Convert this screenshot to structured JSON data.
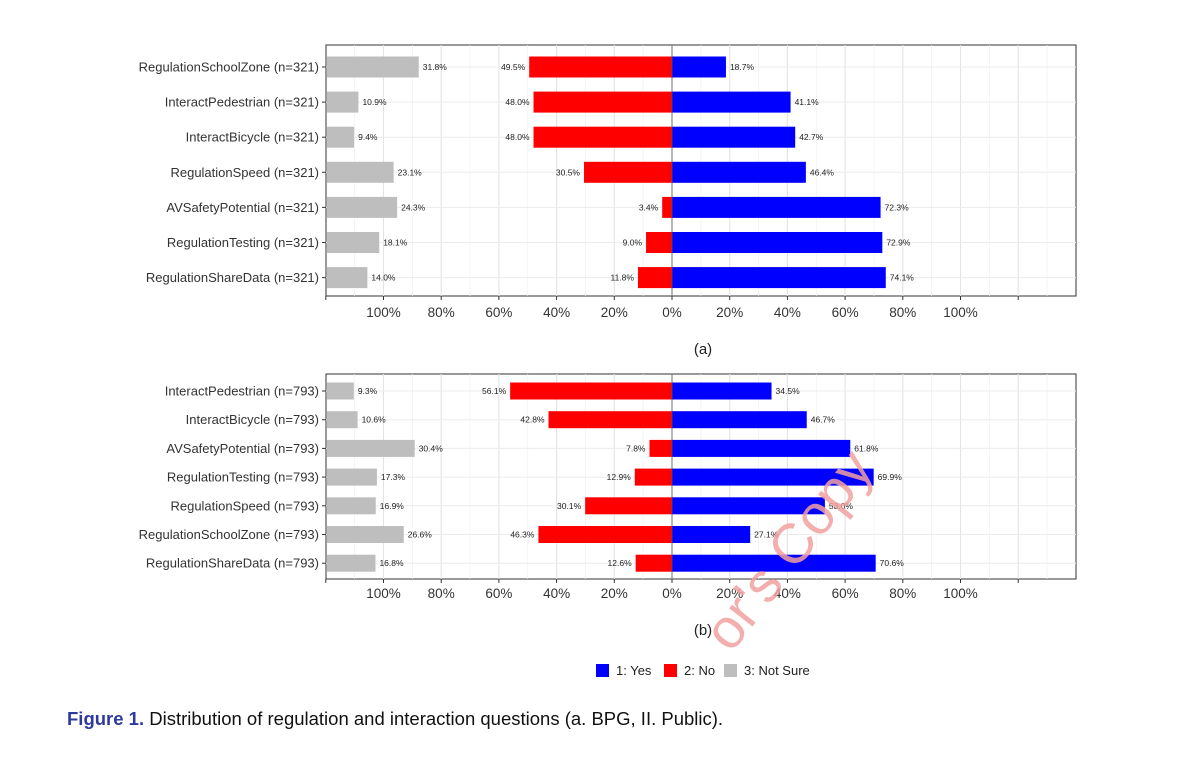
{
  "chart_data": [
    {
      "type": "bar",
      "subtitle": "(a)",
      "categories": [
        "RegulationSchoolZone (n=321)",
        "InteractPedestrian (n=321)",
        "InteractBicycle (n=321)",
        "RegulationSpeed (n=321)",
        "AVSafetyPotential (n=321)",
        "RegulationTesting (n=321)",
        "RegulationShareData (n=321)"
      ],
      "series": [
        {
          "name": "1: Yes",
          "color": "#0000ff",
          "values": [
            18.7,
            41.1,
            42.7,
            46.4,
            72.3,
            72.9,
            74.1
          ]
        },
        {
          "name": "2: No",
          "color": "#ff0000",
          "values": [
            49.5,
            48.0,
            48.0,
            30.5,
            3.4,
            9.0,
            11.8
          ]
        },
        {
          "name": "3: Not Sure",
          "color": "#bebebe",
          "values": [
            31.8,
            10.9,
            9.4,
            23.1,
            24.3,
            18.1,
            14.0
          ]
        }
      ],
      "x_ticks": [
        "100%",
        "80%",
        "60%",
        "40%",
        "20%",
        "0%",
        "20%",
        "40%",
        "60%",
        "80%",
        "100%"
      ],
      "grid": true
    },
    {
      "type": "bar",
      "subtitle": "(b)",
      "categories": [
        "InteractPedestrian (n=793)",
        "InteractBicycle (n=793)",
        "AVSafetyPotential (n=793)",
        "RegulationTesting (n=793)",
        "RegulationSpeed (n=793)",
        "RegulationSchoolZone (n=793)",
        "RegulationShareData (n=793)"
      ],
      "series": [
        {
          "name": "1: Yes",
          "color": "#0000ff",
          "values": [
            34.5,
            46.7,
            61.8,
            69.9,
            53.0,
            27.1,
            70.6
          ]
        },
        {
          "name": "2: No",
          "color": "#ff0000",
          "values": [
            56.1,
            42.8,
            7.8,
            12.9,
            30.1,
            46.3,
            12.6
          ]
        },
        {
          "name": "3: Not Sure",
          "color": "#bebebe",
          "values": [
            9.3,
            10.6,
            30.4,
            17.3,
            16.9,
            26.6,
            16.8
          ]
        }
      ],
      "x_ticks": [
        "100%",
        "80%",
        "60%",
        "40%",
        "20%",
        "0%",
        "20%",
        "40%",
        "60%",
        "80%",
        "100%"
      ],
      "grid": true
    }
  ],
  "legend": {
    "items": [
      {
        "label": "1: Yes",
        "color": "#0000ff"
      },
      {
        "label": "2: No",
        "color": "#ff0000"
      },
      {
        "label": "3: Not Sure",
        "color": "#bebebe"
      }
    ],
    "position": "bottom"
  },
  "caption": {
    "number": "Figure 1.",
    "text": " Distribution of regulation and interaction questions (a. BPG, II. Public)."
  },
  "watermark": "or's Copy"
}
